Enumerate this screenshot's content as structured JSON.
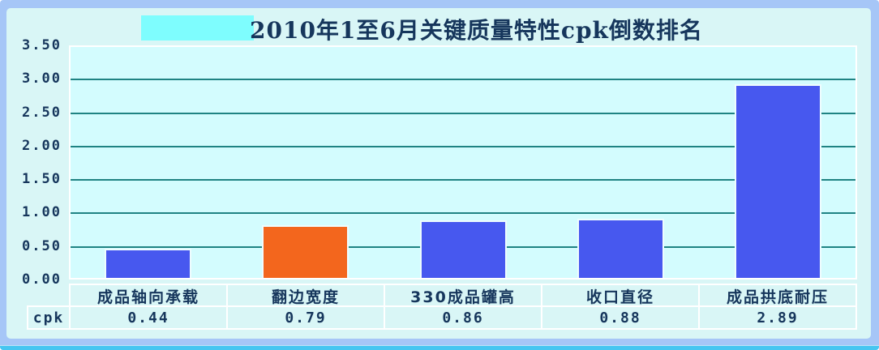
{
  "chart_data": {
    "type": "bar",
    "title": "2010年1至6月关键质量特性cpk倒数排名",
    "categories": [
      "成品轴向承载",
      "翻边宽度",
      "330成品罐高",
      "收口直径",
      "成品拱底耐压"
    ],
    "values": [
      0.44,
      0.79,
      0.86,
      0.88,
      2.89
    ],
    "value_labels": [
      "0.44",
      "0.79",
      "0.86",
      "0.88",
      "2.89"
    ],
    "row_header": "cpk",
    "yticks": [
      "3.50",
      "3.00",
      "2.50",
      "2.00",
      "1.50",
      "1.00",
      "0.50",
      "0.00"
    ],
    "ylim": [
      0,
      3.5
    ],
    "ytick_step": 0.5,
    "grid": true,
    "legend": false,
    "bar_colors": [
      "#4758ef",
      "#f3661d",
      "#4758ef",
      "#4758ef",
      "#4758ef"
    ]
  },
  "colors": {
    "frame_border": "#a6c6f7",
    "bottom_strip": "#46c6f1",
    "page_background": "#d9f6f6",
    "plot_background": "#d3fcfe",
    "gridline": "#1f8383",
    "text": "#16365c",
    "title_highlight": "#7efdfe",
    "cell_border": "#ffffff"
  }
}
